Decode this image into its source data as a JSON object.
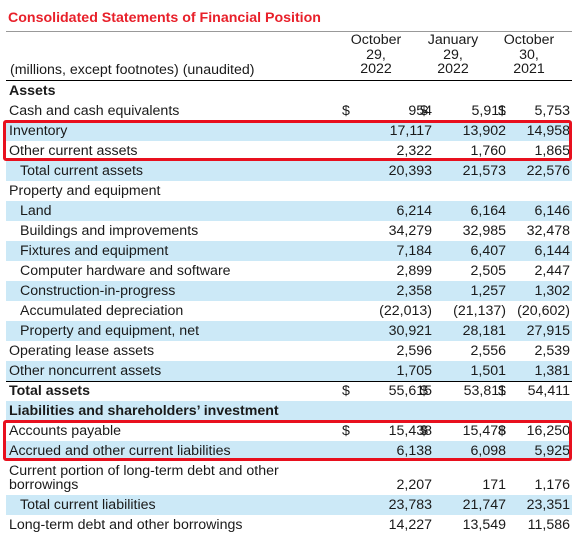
{
  "title": "Consolidated Statements of Financial Position",
  "units_note": "(millions, except footnotes) (unaudited)",
  "columns": [
    {
      "line1": "October",
      "line2": "29,",
      "line3": "2022"
    },
    {
      "line1": "January",
      "line2": "29,",
      "line3": "2022"
    },
    {
      "line1": "October",
      "line2": "30,",
      "line3": "2021"
    }
  ],
  "rows": [
    {
      "label": "Assets",
      "bold": true,
      "shaded": false,
      "cur": [
        "",
        "",
        ""
      ],
      "vals": [
        "",
        "",
        ""
      ]
    },
    {
      "label": "Cash and cash equivalents",
      "bold": false,
      "shaded": false,
      "cur": [
        "$",
        "$",
        "$"
      ],
      "vals": [
        "954",
        "5,911",
        "5,753"
      ]
    },
    {
      "label": "Inventory",
      "bold": false,
      "shaded": true,
      "cur": [
        "",
        "",
        ""
      ],
      "vals": [
        "17,117",
        "13,902",
        "14,958"
      ]
    },
    {
      "label": "Other current assets",
      "bold": false,
      "shaded": false,
      "cur": [
        "",
        "",
        ""
      ],
      "vals": [
        "2,322",
        "1,760",
        "1,865"
      ]
    },
    {
      "label": "Total current assets",
      "bold": false,
      "shaded": true,
      "indent": true,
      "cur": [
        "",
        "",
        ""
      ],
      "vals": [
        "20,393",
        "21,573",
        "22,576"
      ]
    },
    {
      "label": "Property and equipment",
      "bold": false,
      "shaded": false,
      "cur": [
        "",
        "",
        ""
      ],
      "vals": [
        "",
        "",
        ""
      ]
    },
    {
      "label": "Land",
      "bold": false,
      "shaded": true,
      "indent": true,
      "cur": [
        "",
        "",
        ""
      ],
      "vals": [
        "6,214",
        "6,164",
        "6,146"
      ]
    },
    {
      "label": "Buildings and improvements",
      "bold": false,
      "shaded": false,
      "indent": true,
      "cur": [
        "",
        "",
        ""
      ],
      "vals": [
        "34,279",
        "32,985",
        "32,478"
      ]
    },
    {
      "label": "Fixtures and equipment",
      "bold": false,
      "shaded": true,
      "indent": true,
      "cur": [
        "",
        "",
        ""
      ],
      "vals": [
        "7,184",
        "6,407",
        "6,144"
      ]
    },
    {
      "label": "Computer hardware and software",
      "bold": false,
      "shaded": false,
      "indent": true,
      "cur": [
        "",
        "",
        ""
      ],
      "vals": [
        "2,899",
        "2,505",
        "2,447"
      ]
    },
    {
      "label": "Construction-in-progress",
      "bold": false,
      "shaded": true,
      "indent": true,
      "cur": [
        "",
        "",
        ""
      ],
      "vals": [
        "2,358",
        "1,257",
        "1,302"
      ]
    },
    {
      "label": "Accumulated depreciation",
      "bold": false,
      "shaded": false,
      "indent": true,
      "cur": [
        "",
        "",
        ""
      ],
      "vals": [
        "(22,013)",
        "(21,137)",
        "(20,602)"
      ]
    },
    {
      "label": "Property and equipment, net",
      "bold": false,
      "shaded": true,
      "indent": true,
      "cur": [
        "",
        "",
        ""
      ],
      "vals": [
        "30,921",
        "28,181",
        "27,915"
      ]
    },
    {
      "label": "Operating lease assets",
      "bold": false,
      "shaded": false,
      "cur": [
        "",
        "",
        ""
      ],
      "vals": [
        "2,596",
        "2,556",
        "2,539"
      ]
    },
    {
      "label": "Other noncurrent assets",
      "bold": false,
      "shaded": true,
      "cur": [
        "",
        "",
        ""
      ],
      "vals": [
        "1,705",
        "1,501",
        "1,381"
      ]
    },
    {
      "label": "Total assets",
      "bold": true,
      "shaded": false,
      "cur": [
        "$",
        "$",
        "$"
      ],
      "vals": [
        "55,615",
        "53,811",
        "54,411"
      ]
    },
    {
      "label": "Liabilities and shareholders’ investment",
      "bold": true,
      "shaded": true,
      "cur": [
        "",
        "",
        ""
      ],
      "vals": [
        "",
        "",
        ""
      ]
    },
    {
      "label": "Accounts payable",
      "bold": false,
      "shaded": false,
      "cur": [
        "$",
        "$",
        "$"
      ],
      "vals": [
        "15,438",
        "15,478",
        "16,250"
      ]
    },
    {
      "label": "Accrued and other current liabilities",
      "bold": false,
      "shaded": true,
      "cur": [
        "",
        "",
        ""
      ],
      "vals": [
        "6,138",
        "6,098",
        "5,925"
      ]
    },
    {
      "label": "Current portion of long-term debt and other",
      "label2": "borrowings",
      "bold": false,
      "shaded": false,
      "tall": true,
      "cur": [
        "",
        "",
        ""
      ],
      "vals": [
        "2,207",
        "171",
        "1,176"
      ]
    },
    {
      "label": "Total current liabilities",
      "bold": false,
      "shaded": true,
      "indent": true,
      "cur": [
        "",
        "",
        ""
      ],
      "vals": [
        "23,783",
        "21,747",
        "23,351"
      ]
    },
    {
      "label": "Long-term debt and other borrowings",
      "bold": false,
      "shaded": false,
      "cur": [
        "",
        "",
        ""
      ],
      "vals": [
        "14,227",
        "13,549",
        "11,586"
      ]
    }
  ],
  "highlight_color": "#e8101e",
  "shade_color": "#cce9f7",
  "title_color": "#e8202a"
}
